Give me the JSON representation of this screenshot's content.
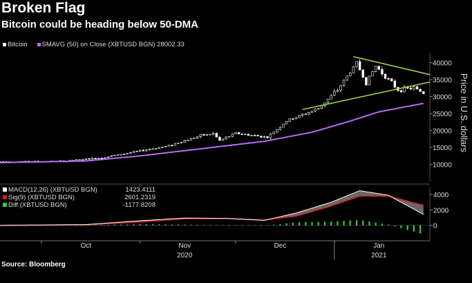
{
  "header": {
    "title": "Broken Flag",
    "subtitle": "Bitcoin could be heading below 50-DMA"
  },
  "legend_top": {
    "bitcoin": "Bitcoin",
    "sma": "SMAVG (50)  on Close (XBTUSD BGN) 28002.33",
    "bitcoin_color": "#ffffff",
    "sma_color": "#b96cf0"
  },
  "source": "Source: Bloomberg",
  "colors": {
    "candle": "#ffffff",
    "sma": "#b96cf0",
    "trend": "#9bd63c",
    "macd": "#ffffff",
    "sig": "#d21e1e",
    "diff": "#3ec93e",
    "diff_negative": "#3ec93e",
    "grid": "#333333"
  },
  "chart_data": [
    {
      "type": "candlestick",
      "ylabel": "Price in U.S. dollars",
      "ylim": [
        5000,
        43000
      ],
      "yticks": [
        10000,
        15000,
        20000,
        25000,
        30000,
        35000,
        40000
      ],
      "ytick_labels": [
        "10000",
        "15000",
        "20000",
        "25000",
        "30000",
        "35000",
        "40000"
      ],
      "xlim": [
        "2020-09-18",
        "2021-01-31"
      ],
      "xticks": [
        {
          "date": "2020-10-15",
          "label": "Oct"
        },
        {
          "date": "2020-11-15",
          "label": "Nov"
        },
        {
          "date": "2020-12-15",
          "label": "Dec"
        },
        {
          "date": "2021-01-15",
          "label": "Jan"
        }
      ],
      "year_labels": [
        {
          "date": "2020-11-15",
          "label": "2020"
        },
        {
          "date": "2021-01-15",
          "label": "2021"
        }
      ],
      "year_boundary": "2021-01-01",
      "anchors": [
        [
          "2020-09-18",
          10800
        ],
        [
          "2020-10-08",
          10900
        ],
        [
          "2020-10-20",
          12000
        ],
        [
          "2020-10-31",
          13800
        ],
        [
          "2020-11-10",
          15500
        ],
        [
          "2020-11-20",
          18500
        ],
        [
          "2020-11-24",
          19100
        ],
        [
          "2020-11-26",
          17000
        ],
        [
          "2020-12-01",
          19200
        ],
        [
          "2020-12-11",
          18000
        ],
        [
          "2020-12-17",
          22800
        ],
        [
          "2020-12-27",
          26500
        ],
        [
          "2021-01-02",
          32000
        ],
        [
          "2021-01-08",
          40000
        ],
        [
          "2021-01-11",
          34000
        ],
        [
          "2021-01-14",
          39000
        ],
        [
          "2021-01-21",
          32000
        ],
        [
          "2021-01-26",
          32600
        ],
        [
          "2021-01-29",
          31000
        ]
      ],
      "sma_points": [
        [
          "2020-09-18",
          10500
        ],
        [
          "2020-10-15",
          11000
        ],
        [
          "2020-11-01",
          12500
        ],
        [
          "2020-11-20",
          14600
        ],
        [
          "2020-12-10",
          16800
        ],
        [
          "2020-12-25",
          19500
        ],
        [
          "2021-01-05",
          22500
        ],
        [
          "2021-01-15",
          25500
        ],
        [
          "2021-01-29",
          28002.33
        ]
      ],
      "trend_lines": [
        {
          "name": "upper",
          "start": [
            "2021-01-07",
            41800
          ],
          "end": [
            "2021-01-31",
            36500
          ]
        },
        {
          "name": "lower",
          "start": [
            "2020-12-22",
            26200
          ],
          "end": [
            "2021-01-31",
            34300
          ]
        }
      ]
    },
    {
      "type": "line",
      "ylim": [
        -2000,
        5000
      ],
      "yticks": [
        0,
        2000,
        4000
      ],
      "ytick_labels": [
        "0",
        "2000",
        "4000"
      ],
      "legend": [
        {
          "name": "MACD(12,26) (XBTUSD BGN)",
          "value": "1423.4111"
        },
        {
          "name": "Sig(9) (XBTUSD BGN)",
          "value": "2601.2319"
        },
        {
          "name": "Diff (XBTUSD BGN)",
          "value": "-1177.8208"
        }
      ],
      "macd_points": [
        [
          "2020-09-18",
          0
        ],
        [
          "2020-10-15",
          100
        ],
        [
          "2020-11-01",
          600
        ],
        [
          "2020-11-15",
          950
        ],
        [
          "2020-11-28",
          900
        ],
        [
          "2020-12-10",
          650
        ],
        [
          "2020-12-20",
          1600
        ],
        [
          "2020-12-31",
          3000
        ],
        [
          "2021-01-09",
          4500
        ],
        [
          "2021-01-18",
          3900
        ],
        [
          "2021-01-29",
          1423.4111
        ]
      ],
      "sig_points": [
        [
          "2020-09-18",
          0
        ],
        [
          "2020-10-15",
          80
        ],
        [
          "2020-11-01",
          450
        ],
        [
          "2020-11-15",
          850
        ],
        [
          "2020-11-28",
          900
        ],
        [
          "2020-12-10",
          700
        ],
        [
          "2020-12-20",
          1200
        ],
        [
          "2020-12-31",
          2500
        ],
        [
          "2021-01-09",
          3800
        ],
        [
          "2021-01-18",
          3800
        ],
        [
          "2021-01-29",
          2601.2319
        ]
      ]
    }
  ]
}
